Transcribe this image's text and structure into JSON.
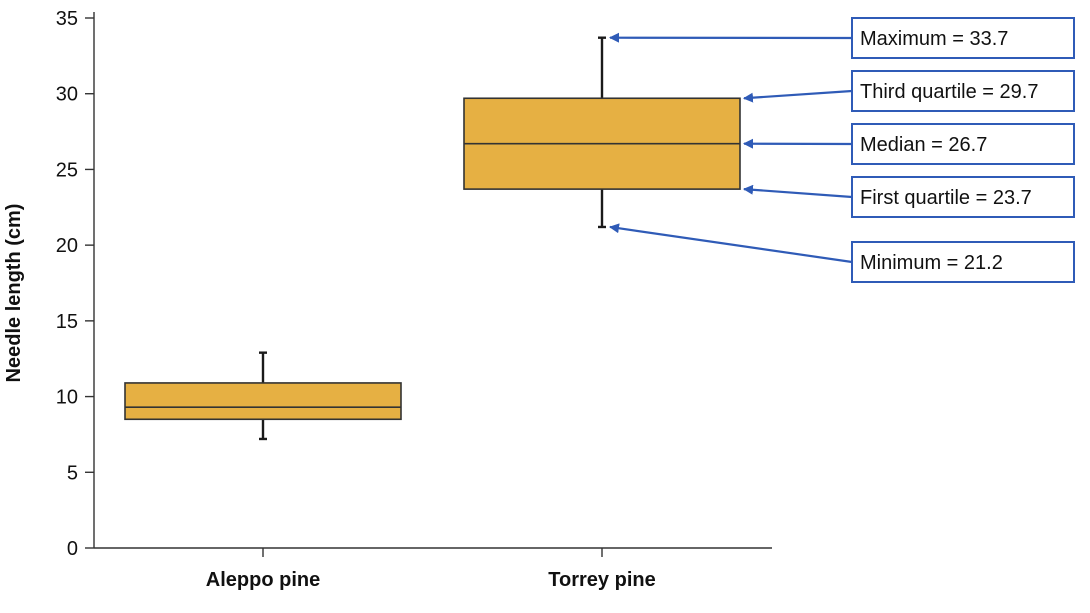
{
  "chart_data": {
    "type": "box",
    "ylabel": "Needle length (cm)",
    "xlabel": "",
    "ylim": [
      0,
      35
    ],
    "yticks": [
      0,
      5,
      10,
      15,
      20,
      25,
      30,
      35
    ],
    "categories": [
      "Aleppo pine",
      "Torrey pine"
    ],
    "boxes": [
      {
        "category": "Aleppo pine",
        "min": 7.2,
        "q1": 8.5,
        "median": 9.3,
        "q3": 10.9,
        "max": 12.9
      },
      {
        "category": "Torrey pine",
        "min": 21.2,
        "q1": 23.7,
        "median": 26.7,
        "q3": 29.7,
        "max": 33.7
      }
    ],
    "annotations": [
      {
        "text": "Maximum = 33.7",
        "target": "max"
      },
      {
        "text": "Third quartile = 29.7",
        "target": "q3"
      },
      {
        "text": "Median = 26.7",
        "target": "median"
      },
      {
        "text": "First quartile = 23.7",
        "target": "q1"
      },
      {
        "text": "Minimum = 21.2",
        "target": "min"
      }
    ],
    "annotated_box": "Torrey pine",
    "colors": {
      "box_fill": "#E6B043",
      "box_stroke": "#333333",
      "whisker": "#1a1a1a",
      "axis": "#333333",
      "callout": "#2F5BB7"
    },
    "grid": false
  }
}
